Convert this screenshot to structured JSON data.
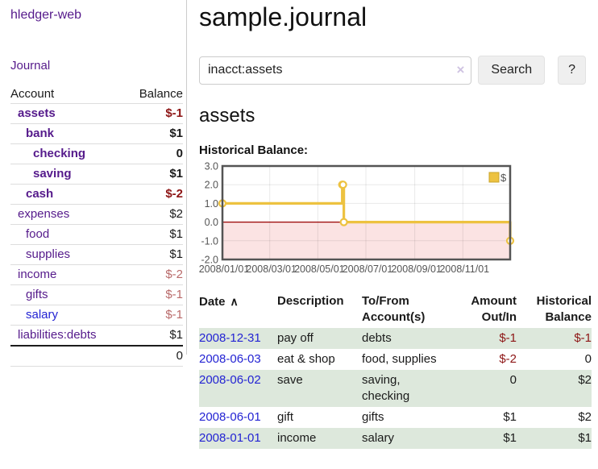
{
  "app": {
    "brand": "hledger-web"
  },
  "colors": {
    "link_purple": "#551a8b",
    "link_blue": "#2323d3",
    "negative_strong": "#8d1515",
    "negative_soft": "#b96a6a",
    "row_stripe_green": "#dde8dc",
    "series_gold": "#edc240",
    "negative_region_pink": "#fbe3e3",
    "zero_line_red": "#990000"
  },
  "sidebar": {
    "nav": {
      "journal": "Journal"
    },
    "accounts": {
      "headers": {
        "account": "Account",
        "balance": "Balance"
      },
      "rows": [
        {
          "name": "assets",
          "balance": "$-1",
          "depth": 1,
          "bold": true,
          "balance_tone": "strong-negative"
        },
        {
          "name": "bank",
          "balance": "$1",
          "depth": 2,
          "bold": true,
          "balance_tone": "normal"
        },
        {
          "name": "checking",
          "balance": "0",
          "depth": 3,
          "bold": true,
          "balance_tone": "normal"
        },
        {
          "name": "saving",
          "balance": "$1",
          "depth": 3,
          "bold": true,
          "balance_tone": "normal"
        },
        {
          "name": "cash",
          "balance": "$-2",
          "depth": 2,
          "bold": true,
          "balance_tone": "strong-negative"
        },
        {
          "name": "expenses",
          "balance": "$2",
          "depth": 1,
          "bold": false,
          "balance_tone": "normal"
        },
        {
          "name": "food",
          "balance": "$1",
          "depth": 2,
          "bold": false,
          "balance_tone": "normal"
        },
        {
          "name": "supplies",
          "balance": "$1",
          "depth": 2,
          "bold": false,
          "balance_tone": "normal"
        },
        {
          "name": "income",
          "balance": "$-2",
          "depth": 1,
          "bold": false,
          "balance_tone": "soft-negative"
        },
        {
          "name": "gifts",
          "balance": "$-1",
          "depth": 2,
          "bold": false,
          "balance_tone": "soft-negative"
        },
        {
          "name": "salary",
          "balance": "$-1",
          "depth": 2,
          "bold": false,
          "balance_tone": "soft-negative"
        },
        {
          "name": "liabilities:debts",
          "balance": "$1",
          "depth": 1,
          "bold": false,
          "balance_tone": "normal"
        }
      ],
      "total": "0"
    }
  },
  "main": {
    "title": "sample.journal",
    "search": {
      "value": "inacct:assets",
      "clear_icon": "×",
      "search_button": "Search",
      "help_button": "?"
    },
    "account_heading": "assets",
    "chart_heading": "Historical Balance:"
  },
  "chart_data": {
    "type": "line",
    "title": "Historical Balance:",
    "step": true,
    "x_range": [
      "2008-01-01",
      "2008-12-31"
    ],
    "ylim": [
      -2,
      3
    ],
    "grid": true,
    "legend_position": "top-right",
    "legend_label": "$",
    "series": [
      {
        "name": "$",
        "color": "#edc240",
        "points": [
          [
            "2008-01-01",
            1
          ],
          [
            "2008-06-01",
            2
          ],
          [
            "2008-06-02",
            2
          ],
          [
            "2008-06-03",
            0
          ],
          [
            "2008-12-31",
            -1
          ]
        ]
      }
    ],
    "x_ticks": [
      {
        "label": "2008/01/01",
        "date": "2008-01-01"
      },
      {
        "label": "2008/03/01",
        "date": "2008-03-01"
      },
      {
        "label": "2008/05/01",
        "date": "2008-05-01"
      },
      {
        "label": "2008/07/01",
        "date": "2008-07-01"
      },
      {
        "label": "2008/09/01",
        "date": "2008-09-01"
      },
      {
        "label": "2008/11/01",
        "date": "2008-11-01"
      }
    ],
    "y_ticks": [
      {
        "label": "3.0",
        "value": 3
      },
      {
        "label": "2.0",
        "value": 2
      },
      {
        "label": "1.0",
        "value": 1
      },
      {
        "label": "0.0",
        "value": 0
      },
      {
        "label": "-1.0",
        "value": -1
      },
      {
        "label": "-2.0",
        "value": -2
      }
    ],
    "negative_region_fill": "#fbe3e3",
    "zero_line_color": "#990000",
    "border_color": "#545454",
    "axis_label_color": "#545454"
  },
  "transactions": {
    "headers": {
      "date": "Date",
      "sort_icon": "∧",
      "description": "Description",
      "accounts": "To/From Account(s)",
      "amount": "Amount Out/In",
      "balance": "Historical Balance"
    },
    "rows": [
      {
        "date": "2008-12-31",
        "description": "pay off",
        "accounts": "debts",
        "amount": "$-1",
        "balance": "$-1"
      },
      {
        "date": "2008-06-03",
        "description": "eat & shop",
        "accounts": "food, supplies",
        "amount": "$-2",
        "balance": "0"
      },
      {
        "date": "2008-06-02",
        "description": "save",
        "accounts": "saving, checking",
        "amount": "0",
        "balance": "$2"
      },
      {
        "date": "2008-06-01",
        "description": "gift",
        "accounts": "gifts",
        "amount": "$1",
        "balance": "$2"
      },
      {
        "date": "2008-01-01",
        "description": "income",
        "accounts": "salary",
        "amount": "$1",
        "balance": "$1"
      }
    ]
  }
}
